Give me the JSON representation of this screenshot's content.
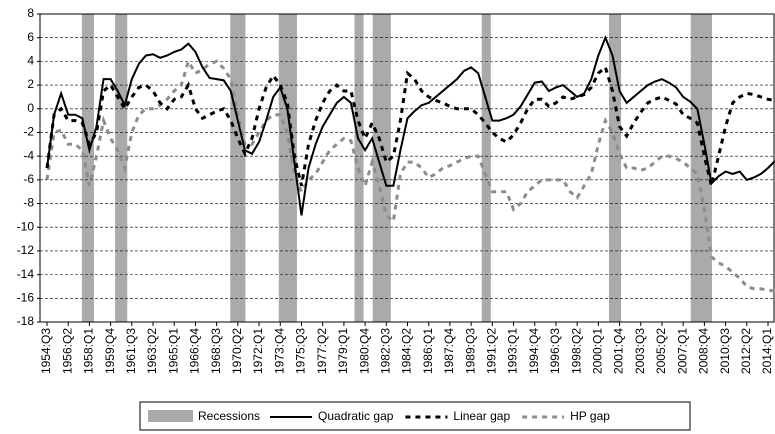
{
  "chart_data": {
    "type": "line",
    "categories": [
      "1954:Q3",
      null,
      null,
      "1956:Q2",
      null,
      null,
      "1958:Q1",
      null,
      null,
      "1959:Q4",
      null,
      null,
      "1961:Q3",
      null,
      null,
      "1963:Q2",
      null,
      null,
      "1965:Q1",
      null,
      null,
      "1966:Q4",
      null,
      null,
      "1968:Q3",
      null,
      null,
      "1970:Q2",
      null,
      null,
      "1972:Q1",
      null,
      null,
      "1973:Q4",
      null,
      null,
      "1975:Q3",
      null,
      null,
      "1977:Q2",
      null,
      null,
      "1979:Q1",
      null,
      null,
      "1980:Q4",
      null,
      null,
      "1982:Q3",
      null,
      null,
      "1984:Q2",
      null,
      null,
      "1986:Q1",
      null,
      null,
      "1987:Q4",
      null,
      null,
      "1989:Q3",
      null,
      null,
      "1991:Q2",
      null,
      null,
      "1993:Q1",
      null,
      null,
      "1994:Q4",
      null,
      null,
      "1996:Q3",
      null,
      null,
      "1998:Q2",
      null,
      null,
      "2000:Q1",
      null,
      null,
      "2001:Q4",
      null,
      null,
      "2003:Q3",
      null,
      null,
      "2005:Q2",
      null,
      null,
      "2007:Q1",
      null,
      null,
      "2008:Q4",
      null,
      null,
      "2010:Q3",
      null,
      null,
      "2012:Q2",
      null,
      null,
      "2014:Q1",
      null
    ],
    "series": [
      {
        "name": "Quadratic gap",
        "color": "#000000",
        "dash": "solid",
        "values": [
          -5,
          -0.5,
          1.3,
          -0.5,
          -0.5,
          -0.8,
          -3.5,
          -1.5,
          2.5,
          2.5,
          1.5,
          0.3,
          2.5,
          3.8,
          4.5,
          4.6,
          4.3,
          4.5,
          4.8,
          5,
          5.5,
          4.8,
          3.5,
          2.6,
          2.5,
          2.4,
          1.5,
          -1,
          -3.5,
          -3.8,
          -2.8,
          -1,
          1,
          1.8,
          0,
          -4.5,
          -9,
          -5,
          -3,
          -1.5,
          -0.5,
          0.5,
          1,
          0.5,
          -2.5,
          -3.5,
          -2.5,
          -4.5,
          -6.5,
          -6.5,
          -3.5,
          -0.8,
          -0.2,
          0.3,
          0.5,
          1,
          1.5,
          2,
          2.5,
          3.2,
          3.5,
          3,
          1,
          -1,
          -1,
          -0.8,
          -0.5,
          0.2,
          1.2,
          2.2,
          2.3,
          1.5,
          1.8,
          2,
          1.5,
          1,
          1.3,
          2.5,
          4.5,
          6,
          4.5,
          1.5,
          0.5,
          1,
          1.5,
          2,
          2.3,
          2.5,
          2.2,
          1.8,
          1,
          0.6,
          0,
          -3,
          -6.3,
          -5.7,
          -5.3,
          -5.5,
          -5.3,
          -6,
          -5.8,
          -5.5,
          -5,
          -4.4
        ]
      },
      {
        "name": "Linear gap",
        "color": "#000000",
        "dash": "dashed",
        "values": [
          -5,
          -0.5,
          0,
          -1,
          -1,
          -1.2,
          -3,
          -2,
          1.5,
          2,
          1,
          0,
          1,
          1.8,
          2,
          1.5,
          0.5,
          0,
          0.8,
          1,
          2,
          0,
          -0.8,
          -0.5,
          -0.2,
          0,
          -1,
          -2.5,
          -3.8,
          -2.5,
          0,
          1.8,
          2.8,
          2,
          0.5,
          -4,
          -6.5,
          -3,
          -1,
          0.5,
          1.5,
          2,
          1.5,
          1.5,
          -1,
          -2.5,
          -1.2,
          -2.5,
          -4.5,
          -4,
          -1,
          3,
          2.5,
          1.5,
          1,
          0.7,
          0.5,
          0.2,
          0,
          0,
          0,
          -0.5,
          -1.2,
          -2,
          -2.5,
          -2.8,
          -2.2,
          -1.2,
          0,
          0.8,
          0.8,
          0.2,
          0.5,
          1,
          0.8,
          1,
          1.2,
          1.8,
          3,
          3.5,
          1.5,
          -1.5,
          -2.3,
          -1.2,
          -0.3,
          0.5,
          0.8,
          1,
          0.7,
          0.4,
          -0.5,
          -0.8,
          -1.2,
          -4,
          -6.5,
          -4,
          -1.5,
          0.5,
          1,
          1.3,
          1.2,
          1,
          0.8,
          0.7
        ]
      },
      {
        "name": "HP gap",
        "color": "#8c8c8c",
        "dash": "dashed",
        "values": [
          -6,
          -2,
          -1.8,
          -3,
          -3,
          -3.5,
          -6.5,
          -4,
          -1,
          -2.5,
          -3.5,
          -5,
          -2,
          -0.5,
          0,
          0,
          0.3,
          0.8,
          1.5,
          2,
          4,
          3,
          3.3,
          3.8,
          4,
          3.4,
          2.5,
          -0.5,
          -3,
          -3,
          -2,
          -1,
          -0.5,
          -0.5,
          -2,
          -5.5,
          -7,
          -6,
          -5.5,
          -4.5,
          -3.5,
          -3,
          -2.5,
          -2.7,
          -5,
          -6.5,
          -4.5,
          -6.5,
          -9,
          -9.5,
          -5.5,
          -4.5,
          -4.5,
          -5,
          -5.8,
          -5.5,
          -5,
          -4.8,
          -4.5,
          -4.2,
          -4,
          -4,
          -5.5,
          -7,
          -7,
          -7,
          -8.5,
          -8,
          -7,
          -6.5,
          -6,
          -6,
          -6,
          -6,
          -7,
          -7.5,
          -6.5,
          -5.5,
          -3,
          -1,
          -2,
          -3.8,
          -5,
          -5,
          -5.2,
          -5,
          -4.5,
          -4,
          -4,
          -4.2,
          -4.5,
          -5,
          -5.5,
          -8.5,
          -12.5,
          -13,
          -13.3,
          -13.8,
          -14.3,
          -15,
          -15.2,
          -15.2,
          -15.3,
          -15.4
        ]
      }
    ],
    "recessions_name": "Recessions",
    "recessions_color": "#aaaaaa",
    "recessions": [
      {
        "start": "1957:Q3",
        "end": "1958:Q2"
      },
      {
        "start": "1960:Q2",
        "end": "1961:Q1"
      },
      {
        "start": "1969:Q4",
        "end": "1970:Q4"
      },
      {
        "start": "1973:Q4",
        "end": "1975:Q1"
      },
      {
        "start": "1980:Q1",
        "end": "1980:Q3"
      },
      {
        "start": "1981:Q3",
        "end": "1982:Q4"
      },
      {
        "start": "1990:Q3",
        "end": "1991:Q1"
      },
      {
        "start": "2001:Q1",
        "end": "2001:Q4"
      },
      {
        "start": "2007:Q4",
        "end": "2009:Q2"
      }
    ],
    "ylim": [
      -18,
      8
    ],
    "yticks": [
      -18,
      -16,
      -14,
      -12,
      -10,
      -8,
      -6,
      -4,
      -2,
      0,
      2,
      4,
      6,
      8
    ],
    "grid": true,
    "legend": "bottom"
  }
}
